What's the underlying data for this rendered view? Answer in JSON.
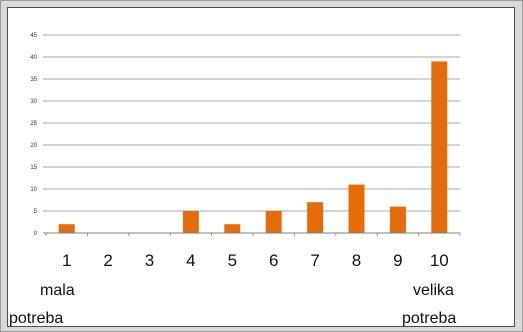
{
  "chart_data": {
    "type": "bar",
    "categories": [
      "1",
      "2",
      "3",
      "4",
      "5",
      "6",
      "7",
      "8",
      "9",
      "10"
    ],
    "values": [
      2,
      0,
      0,
      5,
      2,
      5,
      7,
      11,
      6,
      39
    ],
    "ylim": [
      0,
      45
    ],
    "yticks": [
      "0",
      "5",
      "10",
      "15",
      "20",
      "25",
      "30",
      "35",
      "40",
      "45"
    ],
    "bar_color": "#e46c0a",
    "grid": true,
    "legend": "none",
    "annotations": {
      "low_line1": "mala",
      "low_line2": "potreba",
      "high_line1": "velika",
      "high_line2": "potreba"
    }
  }
}
